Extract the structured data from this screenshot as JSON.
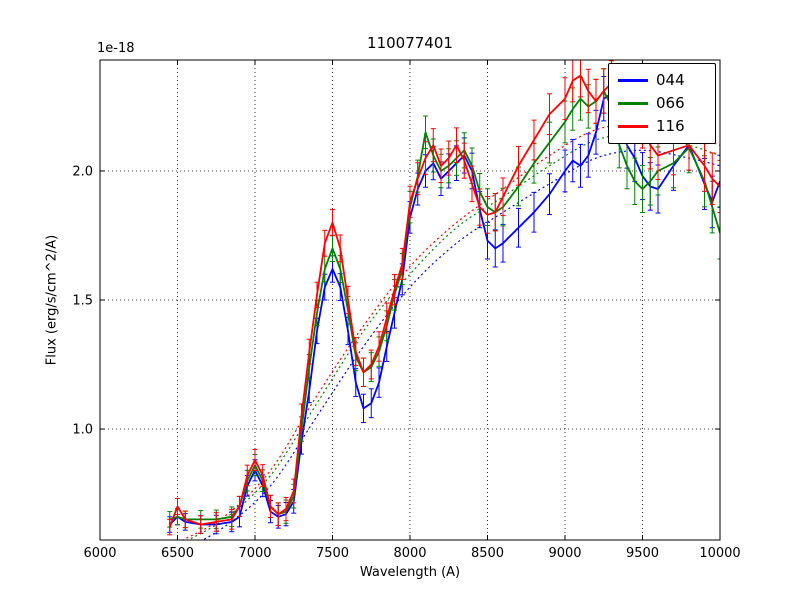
{
  "title": "110077401",
  "offset_label": "1e-18",
  "xlabel": "Wavelength (A)",
  "ylabel": "Flux (erg/s/cm^2/A)",
  "legend": {
    "entries": [
      {
        "label": "044",
        "color": "#0000ff"
      },
      {
        "label": "066",
        "color": "#008000"
      },
      {
        "label": "116",
        "color": "#ff0000"
      }
    ]
  },
  "chart_data": {
    "type": "line",
    "title": "110077401",
    "xlabel": "Wavelength (A)",
    "ylabel": "Flux (erg/s/cm^2/A)",
    "y_scale_factor": "1e-18",
    "xlim": [
      6000,
      10000
    ],
    "ylim": [
      0.57,
      2.43
    ],
    "xticks": [
      6000,
      6500,
      7000,
      7500,
      8000,
      8500,
      9000,
      9500,
      10000
    ],
    "yticks": [
      1.0,
      1.5,
      2.0
    ],
    "grid": true,
    "grid_style": "dotted",
    "legend_position": "upper right",
    "x": [
      6450,
      6500,
      6550,
      6650,
      6750,
      6850,
      6900,
      6950,
      7000,
      7050,
      7100,
      7150,
      7200,
      7250,
      7300,
      7350,
      7400,
      7450,
      7500,
      7550,
      7600,
      7650,
      7700,
      7750,
      7800,
      7850,
      7900,
      7950,
      8000,
      8050,
      8100,
      8150,
      8200,
      8250,
      8300,
      8350,
      8400,
      8450,
      8500,
      8550,
      8600,
      8700,
      8800,
      8900,
      9000,
      9050,
      9100,
      9150,
      9200,
      9250,
      9300,
      9350,
      9400,
      9450,
      9500,
      9550,
      9600,
      9700,
      9800,
      9900,
      9950,
      10000
    ],
    "errors": [
      0.03,
      0.031,
      0.032,
      0.034,
      0.036,
      0.038,
      0.039,
      0.04,
      0.041,
      0.042,
      0.043,
      0.044,
      0.045,
      0.046,
      0.047,
      0.048,
      0.049,
      0.05,
      0.051,
      0.052,
      0.053,
      0.054,
      0.055,
      0.056,
      0.057,
      0.058,
      0.059,
      0.06,
      0.061,
      0.062,
      0.063,
      0.064,
      0.065,
      0.066,
      0.067,
      0.068,
      0.069,
      0.07,
      0.071,
      0.072,
      0.073,
      0.075,
      0.077,
      0.079,
      0.081,
      0.082,
      0.083,
      0.084,
      0.085,
      0.086,
      0.087,
      0.088,
      0.089,
      0.09,
      0.091,
      0.092,
      0.093,
      0.095,
      0.097,
      0.099,
      0.1,
      0.101
    ],
    "series": [
      {
        "name": "044",
        "color": "#0000ff",
        "values": [
          0.63,
          0.66,
          0.64,
          0.63,
          0.63,
          0.64,
          0.66,
          0.78,
          0.84,
          0.78,
          0.68,
          0.66,
          0.67,
          0.72,
          0.95,
          1.15,
          1.38,
          1.55,
          1.62,
          1.55,
          1.38,
          1.18,
          1.08,
          1.1,
          1.18,
          1.32,
          1.45,
          1.58,
          1.82,
          1.93,
          2.0,
          2.03,
          1.97,
          2.0,
          2.03,
          2.06,
          2.0,
          1.85,
          1.73,
          1.7,
          1.72,
          1.78,
          1.84,
          1.91,
          2.0,
          2.04,
          2.02,
          2.06,
          2.15,
          2.28,
          2.3,
          2.2,
          2.1,
          2.05,
          1.98,
          1.94,
          1.93,
          2.02,
          2.1,
          1.95,
          1.88,
          1.96
        ]
      },
      {
        "name": "066",
        "color": "#008000",
        "values": [
          0.65,
          0.66,
          0.65,
          0.65,
          0.65,
          0.66,
          0.7,
          0.8,
          0.86,
          0.8,
          0.7,
          0.67,
          0.68,
          0.74,
          1.0,
          1.24,
          1.45,
          1.62,
          1.7,
          1.62,
          1.46,
          1.28,
          1.22,
          1.24,
          1.3,
          1.4,
          1.52,
          1.62,
          1.86,
          1.98,
          2.15,
          2.06,
          2.0,
          2.02,
          2.05,
          2.08,
          2.02,
          1.92,
          1.86,
          1.84,
          1.86,
          1.94,
          2.03,
          2.11,
          2.19,
          2.24,
          2.28,
          2.25,
          2.27,
          2.31,
          2.25,
          2.1,
          2.02,
          1.96,
          1.93,
          1.96,
          2.0,
          2.03,
          2.09,
          1.96,
          1.86,
          1.76
        ]
      },
      {
        "name": "116",
        "color": "#ff0000",
        "values": [
          0.62,
          0.7,
          0.65,
          0.63,
          0.64,
          0.65,
          0.7,
          0.82,
          0.88,
          0.82,
          0.7,
          0.67,
          0.69,
          0.76,
          1.05,
          1.3,
          1.52,
          1.72,
          1.8,
          1.7,
          1.5,
          1.3,
          1.22,
          1.25,
          1.32,
          1.43,
          1.54,
          1.64,
          1.88,
          1.97,
          2.05,
          2.1,
          2.02,
          2.05,
          2.1,
          2.04,
          1.95,
          1.86,
          1.83,
          1.84,
          1.9,
          2.02,
          2.12,
          2.22,
          2.28,
          2.35,
          2.37,
          2.31,
          2.27,
          2.31,
          2.34,
          2.26,
          2.32,
          2.24,
          2.18,
          2.1,
          2.06,
          2.08,
          2.1,
          2.02,
          1.97,
          1.94
        ]
      }
    ],
    "models": {
      "style": "dotted",
      "x": [
        6500,
        6800,
        7100,
        7400,
        7700,
        8000,
        8300,
        8600,
        8900,
        9200,
        9500,
        9800,
        10000
      ],
      "series": [
        {
          "name": "044-model",
          "color": "#0000ff",
          "values": [
            0.52,
            0.62,
            0.78,
            1.05,
            1.32,
            1.55,
            1.72,
            1.84,
            1.95,
            2.05,
            2.08,
            2.05,
            2.02
          ]
        },
        {
          "name": "066-model",
          "color": "#008000",
          "values": [
            0.55,
            0.65,
            0.82,
            1.1,
            1.38,
            1.6,
            1.78,
            1.9,
            2.02,
            2.12,
            2.14,
            2.1,
            2.06
          ]
        },
        {
          "name": "116-model",
          "color": "#ff0000",
          "values": [
            0.56,
            0.66,
            0.84,
            1.13,
            1.4,
            1.63,
            1.8,
            1.93,
            2.06,
            2.16,
            2.18,
            2.14,
            2.1
          ]
        }
      ]
    }
  }
}
